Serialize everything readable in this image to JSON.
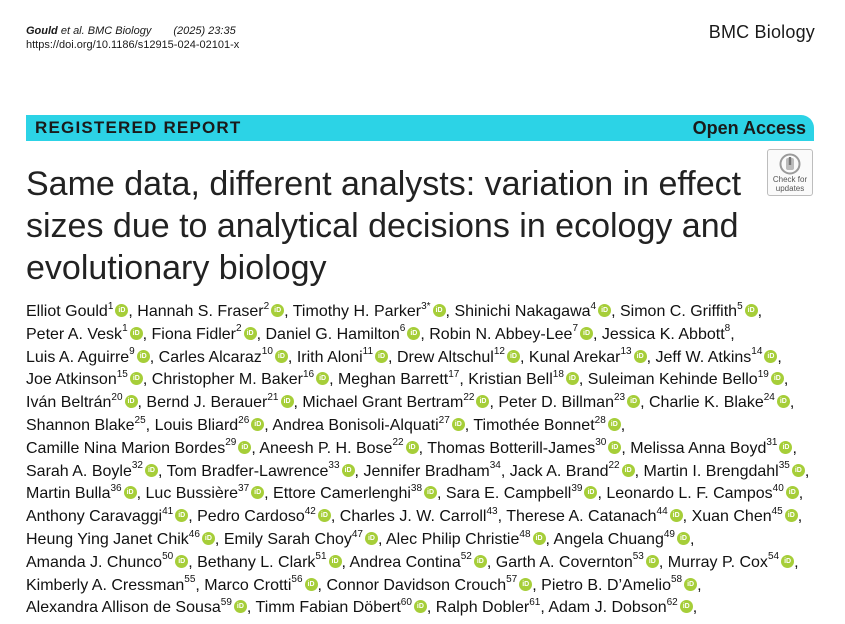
{
  "header": {
    "citation_authors": "Gould",
    "citation_etal": " et al. BMC Biology",
    "citation_year": "(2025) 23:35",
    "doi": "https://doi.org/10.1186/s12915-024-02101-x",
    "journal": "BMC Biology"
  },
  "banner": {
    "article_type": "REGISTERED REPORT",
    "access": "Open Access",
    "color": "#2cd3e6"
  },
  "badge": {
    "icon": "check-for-updates-icon",
    "line1": "Check for",
    "line2": "updates"
  },
  "title": "Same data, different analysts: variation in effect sizes due to analytical decisions in ecology and evolutionary biology",
  "orcid_color": "#a6ce39",
  "authors": [
    {
      "name": "Elliot Gould",
      "aff": "1",
      "orcid": true
    },
    {
      "name": "Hannah S. Fraser",
      "aff": "2",
      "orcid": true
    },
    {
      "name": "Timothy H. Parker",
      "aff": "3*",
      "orcid": true
    },
    {
      "name": "Shinichi Nakagawa",
      "aff": "4",
      "orcid": true
    },
    {
      "name": "Simon C. Griffith",
      "aff": "5",
      "orcid": true
    },
    {
      "name": "Peter A. Vesk",
      "aff": "1",
      "orcid": true
    },
    {
      "name": "Fiona Fidler",
      "aff": "2",
      "orcid": true
    },
    {
      "name": "Daniel G. Hamilton",
      "aff": "6",
      "orcid": true
    },
    {
      "name": "Robin N. Abbey-Lee",
      "aff": "7",
      "orcid": true
    },
    {
      "name": "Jessica K. Abbott",
      "aff": "8",
      "orcid": false
    },
    {
      "name": "Luis A. Aguirre",
      "aff": "9",
      "orcid": true
    },
    {
      "name": "Carles Alcaraz",
      "aff": "10",
      "orcid": true
    },
    {
      "name": "Irith Aloni",
      "aff": "11",
      "orcid": true
    },
    {
      "name": "Drew Altschul",
      "aff": "12",
      "orcid": true
    },
    {
      "name": "Kunal Arekar",
      "aff": "13",
      "orcid": true
    },
    {
      "name": "Jeff W. Atkins",
      "aff": "14",
      "orcid": true
    },
    {
      "name": "Joe Atkinson",
      "aff": "15",
      "orcid": true
    },
    {
      "name": "Christopher M. Baker",
      "aff": "16",
      "orcid": true
    },
    {
      "name": "Meghan Barrett",
      "aff": "17",
      "orcid": false
    },
    {
      "name": "Kristian Bell",
      "aff": "18",
      "orcid": true
    },
    {
      "name": "Suleiman Kehinde Bello",
      "aff": "19",
      "orcid": true
    },
    {
      "name": "Iván Beltrán",
      "aff": "20",
      "orcid": true
    },
    {
      "name": "Bernd J. Berauer",
      "aff": "21",
      "orcid": true
    },
    {
      "name": "Michael Grant Bertram",
      "aff": "22",
      "orcid": true
    },
    {
      "name": "Peter D. Billman",
      "aff": "23",
      "orcid": true
    },
    {
      "name": "Charlie K. Blake",
      "aff": "24",
      "orcid": true
    },
    {
      "name": "Shannon Blake",
      "aff": "25",
      "orcid": false
    },
    {
      "name": "Louis Bliard",
      "aff": "26",
      "orcid": true
    },
    {
      "name": "Andrea Bonisoli-Alquati",
      "aff": "27",
      "orcid": true
    },
    {
      "name": "Timothée Bonnet",
      "aff": "28",
      "orcid": true
    },
    {
      "name": "Camille Nina Marion Bordes",
      "aff": "29",
      "orcid": true
    },
    {
      "name": "Aneesh P. H. Bose",
      "aff": "22",
      "orcid": true
    },
    {
      "name": "Thomas Botterill-James",
      "aff": "30",
      "orcid": true
    },
    {
      "name": "Melissa Anna Boyd",
      "aff": "31",
      "orcid": true
    },
    {
      "name": "Sarah A. Boyle",
      "aff": "32",
      "orcid": true
    },
    {
      "name": "Tom Bradfer-Lawrence",
      "aff": "33",
      "orcid": true
    },
    {
      "name": "Jennifer Bradham",
      "aff": "34",
      "orcid": false
    },
    {
      "name": "Jack A. Brand",
      "aff": "22",
      "orcid": true
    },
    {
      "name": "Martin I. Brengdahl",
      "aff": "35",
      "orcid": true
    },
    {
      "name": "Martin Bulla",
      "aff": "36",
      "orcid": true
    },
    {
      "name": "Luc Bussière",
      "aff": "37",
      "orcid": true
    },
    {
      "name": "Ettore Camerlenghi",
      "aff": "38",
      "orcid": true
    },
    {
      "name": "Sara E. Campbell",
      "aff": "39",
      "orcid": true
    },
    {
      "name": "Leonardo L. F. Campos",
      "aff": "40",
      "orcid": true
    },
    {
      "name": "Anthony Caravaggi",
      "aff": "41",
      "orcid": true
    },
    {
      "name": "Pedro Cardoso",
      "aff": "42",
      "orcid": true
    },
    {
      "name": "Charles J. W. Carroll",
      "aff": "43",
      "orcid": false
    },
    {
      "name": "Therese A. Catanach",
      "aff": "44",
      "orcid": true
    },
    {
      "name": "Xuan Chen",
      "aff": "45",
      "orcid": true
    },
    {
      "name": "Heung Ying Janet Chik",
      "aff": "46",
      "orcid": true
    },
    {
      "name": "Emily Sarah Choy",
      "aff": "47",
      "orcid": true
    },
    {
      "name": "Alec Philip Christie",
      "aff": "48",
      "orcid": true
    },
    {
      "name": "Angela Chuang",
      "aff": "49",
      "orcid": true
    },
    {
      "name": "Amanda J. Chunco",
      "aff": "50",
      "orcid": true
    },
    {
      "name": "Bethany L. Clark",
      "aff": "51",
      "orcid": true
    },
    {
      "name": "Andrea Contina",
      "aff": "52",
      "orcid": true
    },
    {
      "name": "Garth A. Covernton",
      "aff": "53",
      "orcid": true
    },
    {
      "name": "Murray P. Cox",
      "aff": "54",
      "orcid": true
    },
    {
      "name": "Kimberly A. Cressman",
      "aff": "55",
      "orcid": false
    },
    {
      "name": "Marco Crotti",
      "aff": "56",
      "orcid": true
    },
    {
      "name": "Connor Davidson Crouch",
      "aff": "57",
      "orcid": true
    },
    {
      "name": "Pietro B. D’Amelio",
      "aff": "58",
      "orcid": true
    },
    {
      "name": "Alexandra Allison de Sousa",
      "aff": "59",
      "orcid": true
    },
    {
      "name": "Timm Fabian Döbert",
      "aff": "60",
      "orcid": true
    },
    {
      "name": "Ralph Dobler",
      "aff": "61",
      "orcid": false
    },
    {
      "name": "Adam J. Dobson",
      "aff": "62",
      "orcid": true
    }
  ],
  "author_separator": ", "
}
